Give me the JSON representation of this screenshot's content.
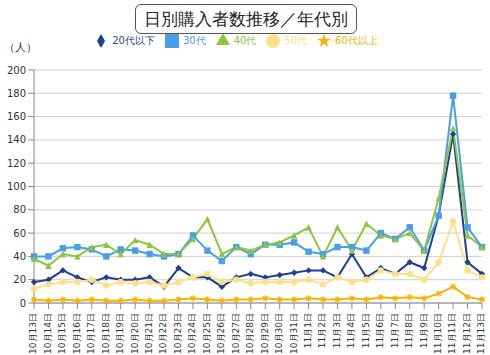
{
  "chart_data": {
    "type": "line",
    "title": "日別購入者数推移／年代別",
    "y_label": "（人）",
    "categories": [
      "10月13日",
      "10月14日",
      "10月15日",
      "10月16日",
      "10月17日",
      "10月18日",
      "10月19日",
      "10月20日",
      "10月21日",
      "10月22日",
      "10月23日",
      "10月24日",
      "10月25日",
      "10月26日",
      "10月27日",
      "10月28日",
      "10月29日",
      "10月30日",
      "10月31日",
      "11月1日",
      "11月2日",
      "11月3日",
      "11月4日",
      "11月5日",
      "11月6日",
      "11月7日",
      "11月8日",
      "11月9日",
      "11月10日",
      "11月11日",
      "11月12日",
      "11月13日"
    ],
    "series": [
      {
        "name": "20代以下",
        "color": "#1f3f8f",
        "marker": "diamond",
        "values": [
          18,
          20,
          28,
          22,
          18,
          22,
          20,
          20,
          22,
          14,
          30,
          22,
          22,
          14,
          22,
          25,
          22,
          24,
          26,
          28,
          28,
          22,
          42,
          22,
          30,
          25,
          35,
          30,
          75,
          145,
          35,
          25
        ]
      },
      {
        "name": "30代",
        "color": "#4a9ee8",
        "marker": "square",
        "values": [
          40,
          40,
          47,
          48,
          46,
          40,
          46,
          45,
          42,
          40,
          42,
          58,
          45,
          36,
          48,
          42,
          50,
          50,
          52,
          44,
          42,
          48,
          48,
          45,
          60,
          55,
          65,
          45,
          75,
          178,
          65,
          48
        ]
      },
      {
        "name": "40代",
        "color": "#8cc63f",
        "marker": "triangle",
        "values": [
          38,
          32,
          42,
          40,
          48,
          50,
          42,
          54,
          50,
          42,
          42,
          55,
          72,
          42,
          48,
          45,
          50,
          52,
          58,
          65,
          40,
          65,
          45,
          68,
          58,
          55,
          60,
          45,
          90,
          150,
          58,
          48
        ]
      },
      {
        "name": "50代",
        "color": "#ffe08a",
        "marker": "circle",
        "values": [
          12,
          16,
          18,
          18,
          20,
          15,
          18,
          17,
          18,
          15,
          18,
          22,
          25,
          18,
          20,
          17,
          18,
          18,
          18,
          20,
          16,
          22,
          18,
          20,
          28,
          25,
          25,
          20,
          35,
          70,
          28,
          22
        ]
      },
      {
        "name": "60代以上",
        "color": "#f5b400",
        "marker": "star",
        "values": [
          3,
          2,
          3,
          2,
          3,
          2,
          2,
          3,
          2,
          2,
          3,
          4,
          3,
          2,
          3,
          3,
          4,
          3,
          3,
          4,
          3,
          3,
          4,
          3,
          5,
          4,
          5,
          4,
          8,
          14,
          5,
          3
        ]
      }
    ],
    "ylim": [
      0,
      200
    ],
    "yticks": [
      0,
      20,
      40,
      60,
      80,
      100,
      120,
      140,
      160,
      180,
      200
    ],
    "grid": true,
    "legend": "top"
  }
}
